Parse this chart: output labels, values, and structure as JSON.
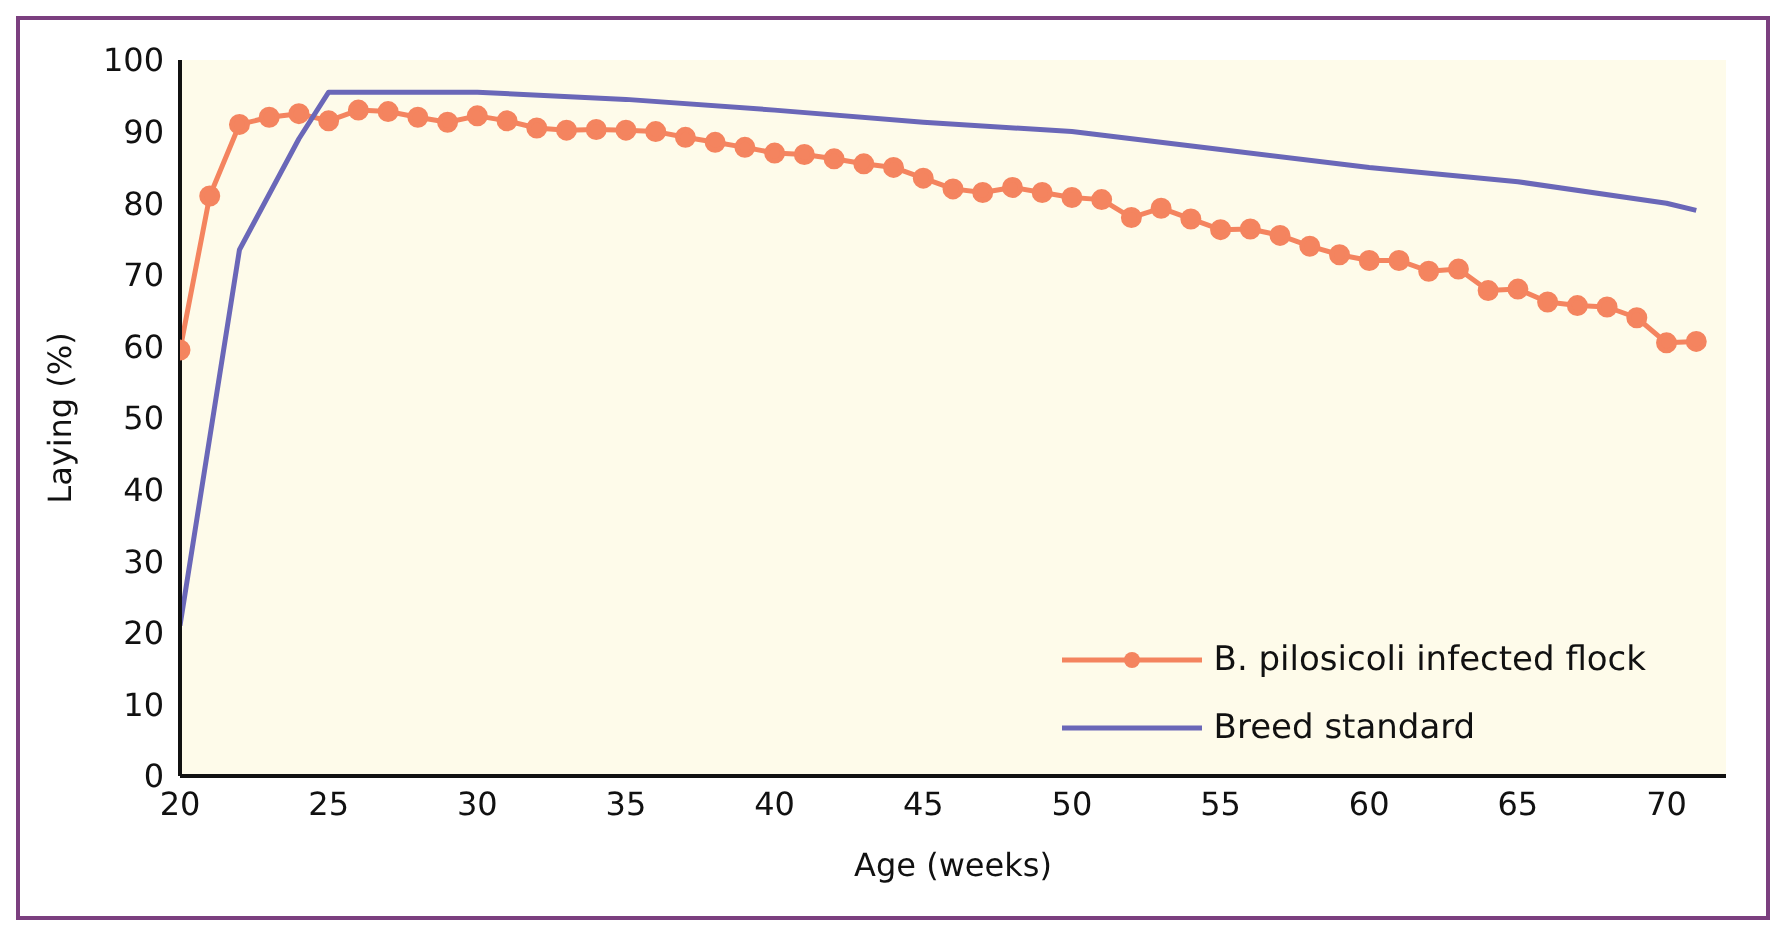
{
  "chart_data": {
    "type": "line",
    "xlabel": "Age (weeks)",
    "ylabel": "Laying (%)",
    "xlim": [
      20,
      72
    ],
    "xticks": [
      20,
      25,
      30,
      35,
      40,
      45,
      50,
      55,
      60,
      65,
      70
    ],
    "ylim": [
      0,
      100
    ],
    "yticks": [
      0,
      10,
      20,
      30,
      40,
      50,
      60,
      70,
      80,
      90,
      100
    ],
    "grid": false,
    "legend": "bottom right",
    "series": [
      {
        "name": "B. pilosicoli infected flock",
        "color": "#f4845f",
        "marker": "circle",
        "x": [
          20,
          21,
          22,
          23,
          24,
          25,
          26,
          27,
          28,
          29,
          30,
          31,
          32,
          33,
          34,
          35,
          36,
          37,
          38,
          39,
          40,
          41,
          42,
          43,
          44,
          45,
          46,
          47,
          48,
          49,
          50,
          51,
          52,
          53,
          54,
          55,
          56,
          57,
          58,
          59,
          60,
          61,
          62,
          63,
          64,
          65,
          66,
          67,
          68,
          69,
          70,
          71
        ],
        "values": [
          59.5,
          81,
          91,
          92,
          92.5,
          91.5,
          93,
          92.8,
          92,
          91.3,
          92.2,
          91.5,
          90.5,
          90.2,
          90.3,
          90.2,
          90,
          89.2,
          88.5,
          87.8,
          87,
          86.8,
          86.2,
          85.5,
          85,
          83.5,
          82,
          81.5,
          82.2,
          81.5,
          80.8,
          80.5,
          78,
          79.3,
          77.8,
          76.3,
          76.4,
          75.5,
          74,
          72.8,
          72,
          72,
          70.5,
          70.8,
          67.8,
          68,
          66.2,
          65.7,
          65.5,
          64,
          60.5,
          60.7
        ]
      },
      {
        "name": "Breed standard",
        "color": "#6a67b8",
        "marker": "none",
        "x": [
          20,
          22,
          24,
          25,
          30,
          35,
          40,
          45,
          50,
          55,
          60,
          65,
          70,
          71
        ],
        "values": [
          21,
          73.5,
          89,
          95.5,
          95.5,
          94.5,
          93,
          91.3,
          90,
          87.5,
          85,
          83,
          80,
          79
        ]
      }
    ]
  }
}
